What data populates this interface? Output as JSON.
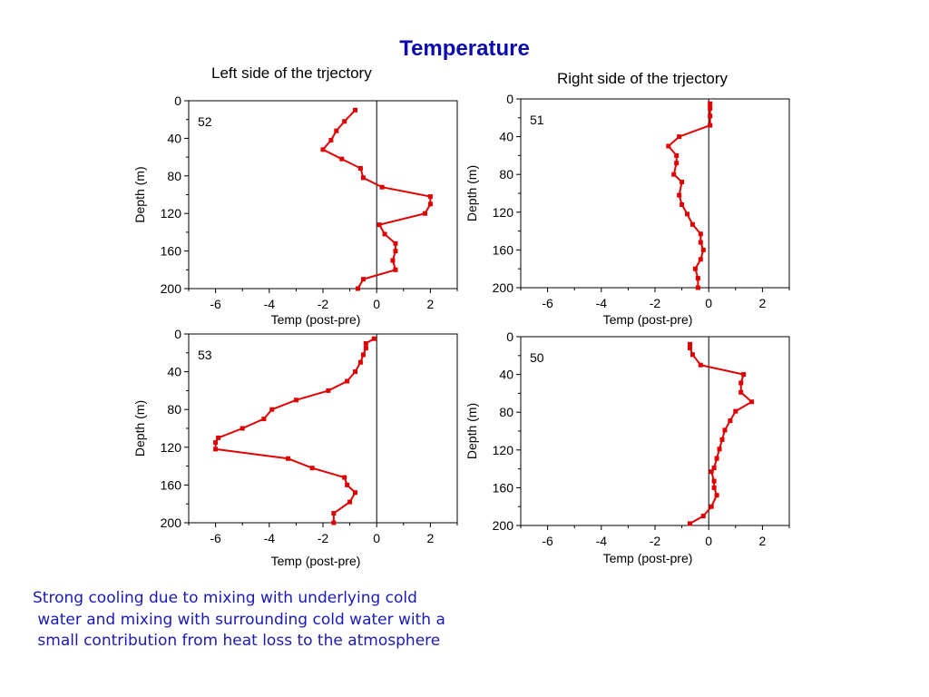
{
  "title": "Temperature",
  "subtitles": {
    "left": "Left side of the trjectory",
    "right": "Right side of the trjectory"
  },
  "note": "Strong cooling due to mixing with underlying cold\n water and mixing with surrounding cold water with a\n small contribution from heat loss to the atmosphere",
  "colors": {
    "title": "#0b0bb0",
    "note": "#1a1ab8",
    "series": "#e00000",
    "axis": "#000000"
  },
  "chart_data": [
    {
      "type": "line",
      "panel_label": "52",
      "xlabel": "Temp (post-pre)",
      "ylabel": "Depth (m)",
      "xlim": [
        -7,
        3
      ],
      "ylim": [
        200,
        0
      ],
      "xticks": [
        -6,
        -4,
        -2,
        0,
        2
      ],
      "yticks": [
        0,
        40,
        80,
        120,
        160,
        200
      ],
      "zero_line": true,
      "points": [
        [
          -0.8,
          10
        ],
        [
          -1.2,
          22
        ],
        [
          -1.5,
          32
        ],
        [
          -1.7,
          42
        ],
        [
          -2.0,
          52
        ],
        [
          -1.3,
          62
        ],
        [
          -0.6,
          72
        ],
        [
          -0.5,
          82
        ],
        [
          0.2,
          92
        ],
        [
          2.0,
          102
        ],
        [
          2.0,
          110
        ],
        [
          1.8,
          120
        ],
        [
          0.1,
          132
        ],
        [
          0.3,
          142
        ],
        [
          0.7,
          152
        ],
        [
          0.7,
          160
        ],
        [
          0.6,
          170
        ],
        [
          0.7,
          180
        ],
        [
          -0.5,
          190
        ],
        [
          -0.7,
          200
        ]
      ]
    },
    {
      "type": "line",
      "panel_label": "51",
      "xlabel": "Temp (post-pre)",
      "ylabel": "Depth (m)",
      "xlim": [
        -7,
        3
      ],
      "ylim": [
        200,
        0
      ],
      "xticks": [
        -6,
        -4,
        -2,
        0,
        2
      ],
      "yticks": [
        0,
        40,
        80,
        120,
        160,
        200
      ],
      "zero_line": true,
      "points": [
        [
          0.05,
          5
        ],
        [
          0.05,
          10
        ],
        [
          0.05,
          18
        ],
        [
          0.05,
          28
        ],
        [
          -1.1,
          40
        ],
        [
          -1.5,
          50
        ],
        [
          -1.2,
          60
        ],
        [
          -1.2,
          68
        ],
        [
          -1.3,
          80
        ],
        [
          -1.0,
          88
        ],
        [
          -1.1,
          102
        ],
        [
          -1.0,
          112
        ],
        [
          -0.8,
          122
        ],
        [
          -0.6,
          133
        ],
        [
          -0.3,
          143
        ],
        [
          -0.3,
          152
        ],
        [
          -0.2,
          160
        ],
        [
          -0.3,
          170
        ],
        [
          -0.5,
          180
        ],
        [
          -0.4,
          190
        ],
        [
          -0.4,
          200
        ]
      ]
    },
    {
      "type": "line",
      "panel_label": "53",
      "xlabel": "Temp (post-pre)",
      "ylabel": "Depth (m)",
      "xlim": [
        -7,
        3
      ],
      "ylim": [
        200,
        0
      ],
      "xticks": [
        -6,
        -4,
        -2,
        0,
        2
      ],
      "yticks": [
        0,
        40,
        80,
        120,
        160,
        200
      ],
      "zero_line": true,
      "points": [
        [
          -0.1,
          5
        ],
        [
          -0.4,
          10
        ],
        [
          -0.4,
          15
        ],
        [
          -0.5,
          22
        ],
        [
          -0.6,
          30
        ],
        [
          -0.8,
          40
        ],
        [
          -1.1,
          50
        ],
        [
          -1.8,
          60
        ],
        [
          -3.0,
          70
        ],
        [
          -3.9,
          80
        ],
        [
          -4.2,
          90
        ],
        [
          -5.0,
          100
        ],
        [
          -5.9,
          110
        ],
        [
          -6.0,
          115
        ],
        [
          -6.0,
          122
        ],
        [
          -3.3,
          132
        ],
        [
          -2.4,
          142
        ],
        [
          -1.2,
          152
        ],
        [
          -1.1,
          160
        ],
        [
          -0.8,
          168
        ],
        [
          -1.0,
          178
        ],
        [
          -1.6,
          190
        ],
        [
          -1.6,
          200
        ]
      ]
    },
    {
      "type": "line",
      "panel_label": "50",
      "xlabel": "Temp (post-pre)",
      "ylabel": "Depth (m)",
      "xlim": [
        -7,
        3
      ],
      "ylim": [
        200,
        0
      ],
      "xticks": [
        -6,
        -4,
        -2,
        0,
        2
      ],
      "yticks": [
        0,
        40,
        80,
        120,
        160,
        200
      ],
      "zero_line": true,
      "points": [
        [
          -0.7,
          8
        ],
        [
          -0.7,
          12
        ],
        [
          -0.6,
          19
        ],
        [
          -0.3,
          30
        ],
        [
          1.3,
          40
        ],
        [
          1.2,
          49
        ],
        [
          1.2,
          59
        ],
        [
          1.6,
          69
        ],
        [
          1.0,
          79
        ],
        [
          0.8,
          89
        ],
        [
          0.6,
          99
        ],
        [
          0.5,
          109
        ],
        [
          0.4,
          119
        ],
        [
          0.3,
          129
        ],
        [
          0.2,
          139
        ],
        [
          0.1,
          143
        ],
        [
          0.2,
          153
        ],
        [
          0.2,
          160
        ],
        [
          0.3,
          168
        ],
        [
          0.1,
          180
        ],
        [
          -0.2,
          190
        ],
        [
          -0.7,
          198
        ]
      ]
    }
  ]
}
